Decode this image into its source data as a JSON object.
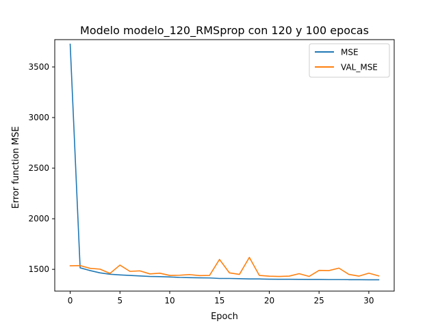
{
  "chart_data": {
    "type": "line",
    "title": "Modelo  modelo_120_RMSprop con 120 y 100 epocas",
    "xlabel": "Epoch",
    "ylabel": "Error function MSE",
    "xlim": [
      -1.55,
      32.55
    ],
    "ylim": [
      1285,
      3770
    ],
    "xticks": [
      0,
      5,
      10,
      15,
      20,
      25,
      30
    ],
    "xtick_labels": [
      "0",
      "5",
      "10",
      "15",
      "20",
      "25",
      "30"
    ],
    "yticks": [
      1500,
      2000,
      2500,
      3000,
      3500
    ],
    "ytick_labels": [
      "1500",
      "2000",
      "2500",
      "3000",
      "3500"
    ],
    "grid": false,
    "legend_position": "top-right",
    "series": [
      {
        "name": "MSE",
        "color": "#1f77b4",
        "x": [
          0,
          1,
          2,
          3,
          4,
          5,
          6,
          7,
          8,
          9,
          10,
          11,
          12,
          13,
          14,
          15,
          16,
          17,
          18,
          19,
          20,
          21,
          22,
          23,
          24,
          25,
          26,
          27,
          28,
          29,
          30,
          31
        ],
        "values": [
          3725,
          1515,
          1488,
          1465,
          1452,
          1445,
          1440,
          1435,
          1430,
          1428,
          1425,
          1420,
          1418,
          1416,
          1415,
          1410,
          1410,
          1408,
          1405,
          1405,
          1403,
          1402,
          1402,
          1401,
          1400,
          1400,
          1399,
          1399,
          1398,
          1398,
          1397,
          1397
        ]
      },
      {
        "name": "VAL_MSE",
        "color": "#ff7f0e",
        "x": [
          0,
          1,
          2,
          3,
          4,
          5,
          6,
          7,
          8,
          9,
          10,
          11,
          12,
          13,
          14,
          15,
          16,
          17,
          18,
          19,
          20,
          21,
          22,
          23,
          24,
          25,
          26,
          27,
          28,
          29,
          30,
          31
        ],
        "values": [
          1535,
          1537,
          1510,
          1502,
          1460,
          1542,
          1480,
          1485,
          1455,
          1462,
          1440,
          1442,
          1448,
          1438,
          1440,
          1598,
          1465,
          1450,
          1618,
          1440,
          1432,
          1430,
          1433,
          1457,
          1430,
          1490,
          1488,
          1512,
          1450,
          1433,
          1462,
          1435
        ]
      }
    ]
  }
}
